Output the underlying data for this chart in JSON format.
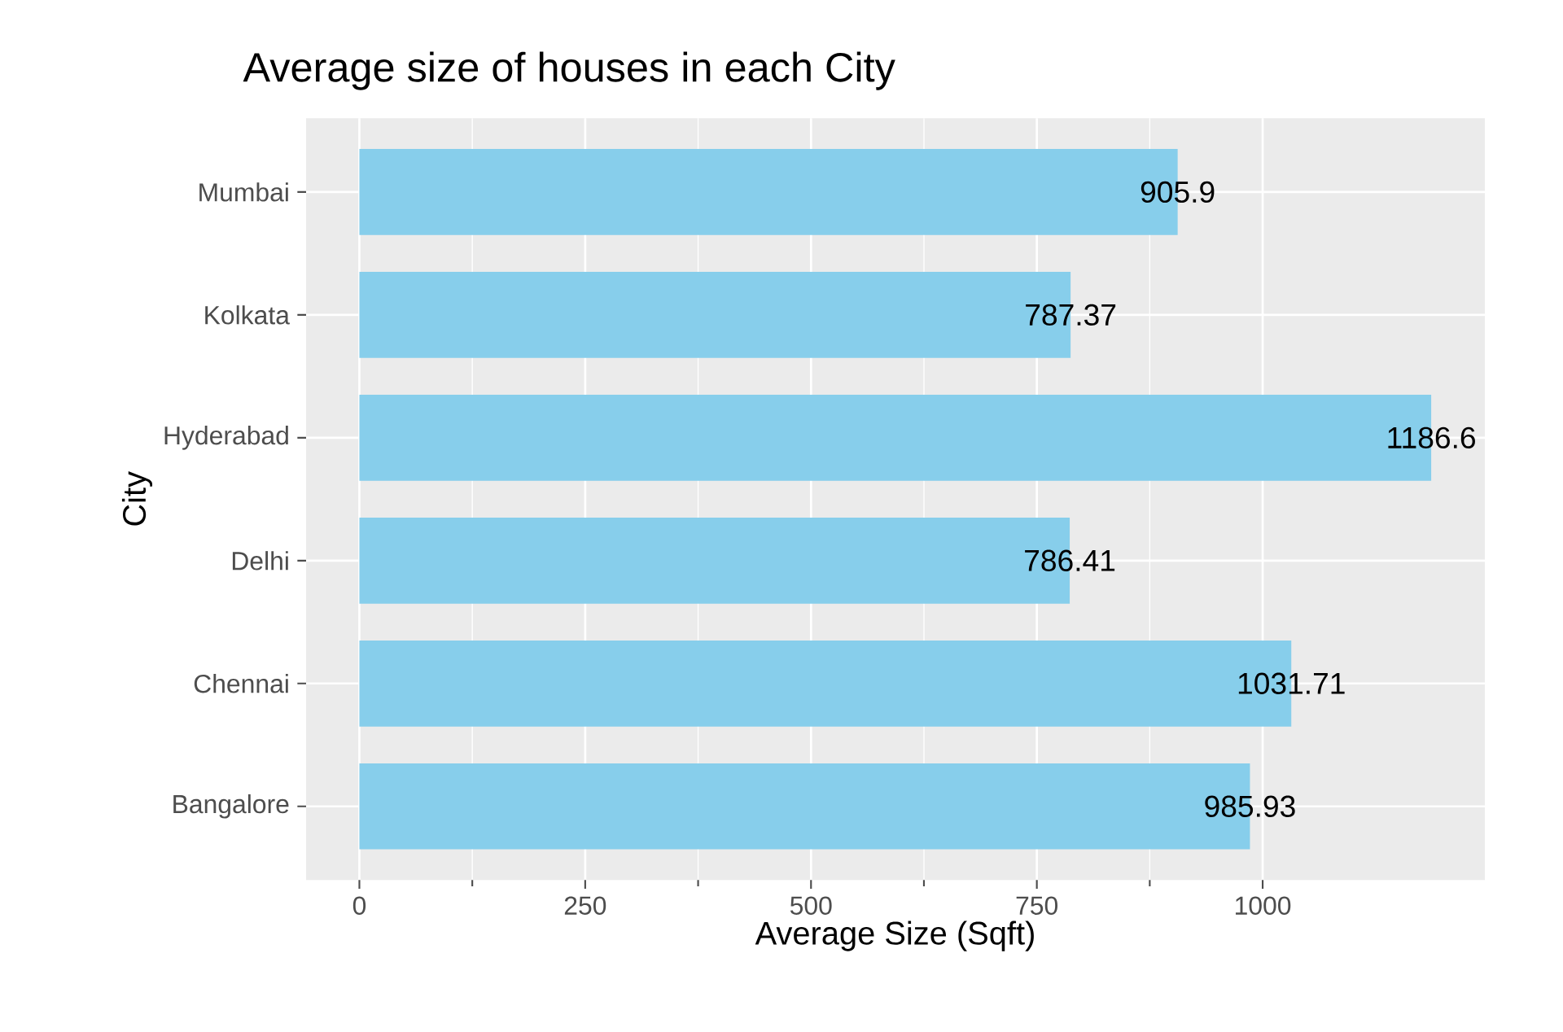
{
  "chart_data": {
    "type": "bar",
    "orientation": "horizontal",
    "title": "Average size of houses in each City",
    "xlabel": "Average Size (Sqft)",
    "ylabel": "City",
    "categories": [
      "Mumbai",
      "Kolkata",
      "Hyderabad",
      "Delhi",
      "Chennai",
      "Bangalore"
    ],
    "values": [
      905.9,
      787.37,
      1186.6,
      786.41,
      1031.71,
      985.93
    ],
    "color": "#87ceeb",
    "data_labels": true,
    "grid": true,
    "xlim": [
      -59,
      1246
    ],
    "xticks": [
      0,
      250,
      500,
      750,
      1000
    ]
  }
}
